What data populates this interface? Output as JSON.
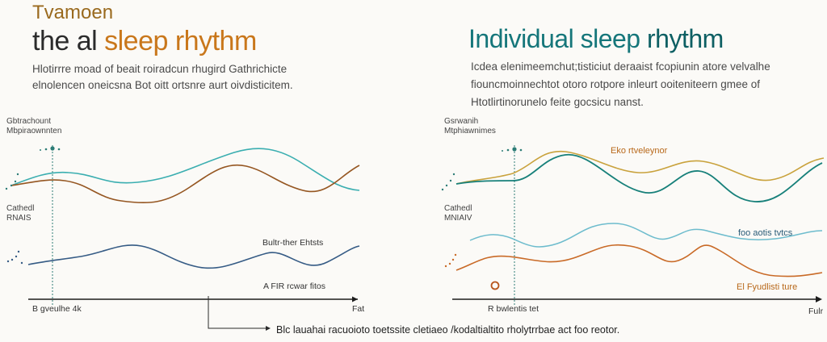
{
  "left": {
    "title_line1": "Tvamoen",
    "title_line2_prefix": "the al ",
    "title_line2_accent": "sleep rhythm",
    "desc_line1": "Hlotirrre moad of beait roiradcun rhugird Gathrichicte",
    "desc_line2": "elnolencen oneicsna Bot oitt ortsnre aurt oivdisticitem.",
    "top_label_line1": "Gbtrachount",
    "top_label_line2": "Mbpiraownnten",
    "mid_label_line1": "Cathedl",
    "mid_label_line2": "RNAIS",
    "wave_label_1": "Bultr-ther Ehtsts",
    "wave_label_2": "A FIR rcwar fitos",
    "x_start_label": "B gveulhe 4k",
    "x_end_label": "Fat"
  },
  "right": {
    "title_prefix": "Individual sleep ",
    "title_accent": "rhythm",
    "desc_line1": "Icdea elenimeemchut;tisticiut deraaist fcopiunin atore velvalhe",
    "desc_line2": "fiouncmoinnechtot otoro rotpore inleurt ooiteniteern gmee of",
    "desc_line3": "Htotlirtinorunelo feite gocsicu nanst.",
    "top_label_line1": "Gsrwanih",
    "top_label_line2": "Mtphiawnimes",
    "mid_label_line1": "Cathedl",
    "mid_label_line2": "MNIAIV",
    "wave_label_1": "Eko rtveleynor",
    "wave_label_2": "foo aotis tvtcs",
    "wave_label_3": "El Fyudlisti ture",
    "x_start_label": "R bwlentis tet",
    "x_end_label": "Fulr"
  },
  "footer_note": "Blc lauahai racuoioto toetssite cletiaeo /kodaltialtito rholytrrbae act foo reotor.",
  "colors": {
    "teal": "#3aaeb0",
    "dark_teal": "#17807a",
    "brown": "#9a5a22",
    "navy": "#355b85",
    "gold": "#c9a23c",
    "orange": "#c96a27",
    "light_teal": "#6dbccd"
  }
}
